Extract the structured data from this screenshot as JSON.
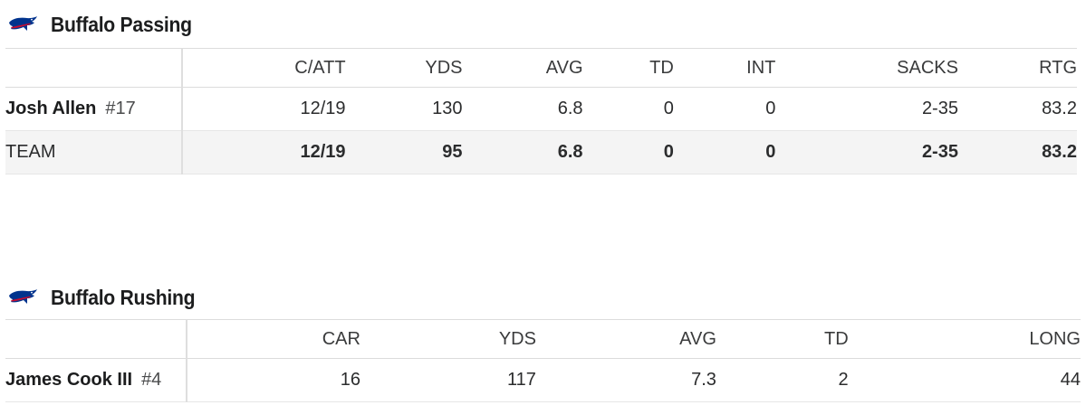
{
  "passing": {
    "title": "Buffalo Passing",
    "logo_icon": "buffalo-bills-logo",
    "columns": [
      "C/ATT",
      "YDS",
      "AVG",
      "TD",
      "INT",
      "SACKS",
      "RTG"
    ],
    "rows": [
      {
        "name": "Josh Allen",
        "number": "#17",
        "stats": [
          "12/19",
          "130",
          "6.8",
          "0",
          "0",
          "2-35",
          "83.2"
        ]
      }
    ],
    "team": {
      "name": "TEAM",
      "stats": [
        "12/19",
        "95",
        "6.8",
        "0",
        "0",
        "2-35",
        "83.2"
      ]
    }
  },
  "rushing": {
    "title": "Buffalo Rushing",
    "logo_icon": "buffalo-bills-logo",
    "columns": [
      "CAR",
      "YDS",
      "AVG",
      "TD",
      "LONG"
    ],
    "rows": [
      {
        "name": "James Cook III",
        "number": "#4",
        "stats": [
          "16",
          "117",
          "7.3",
          "2",
          "44"
        ]
      }
    ]
  },
  "colors": {
    "brand_blue": "#00338D",
    "brand_red": "#C60C30"
  }
}
